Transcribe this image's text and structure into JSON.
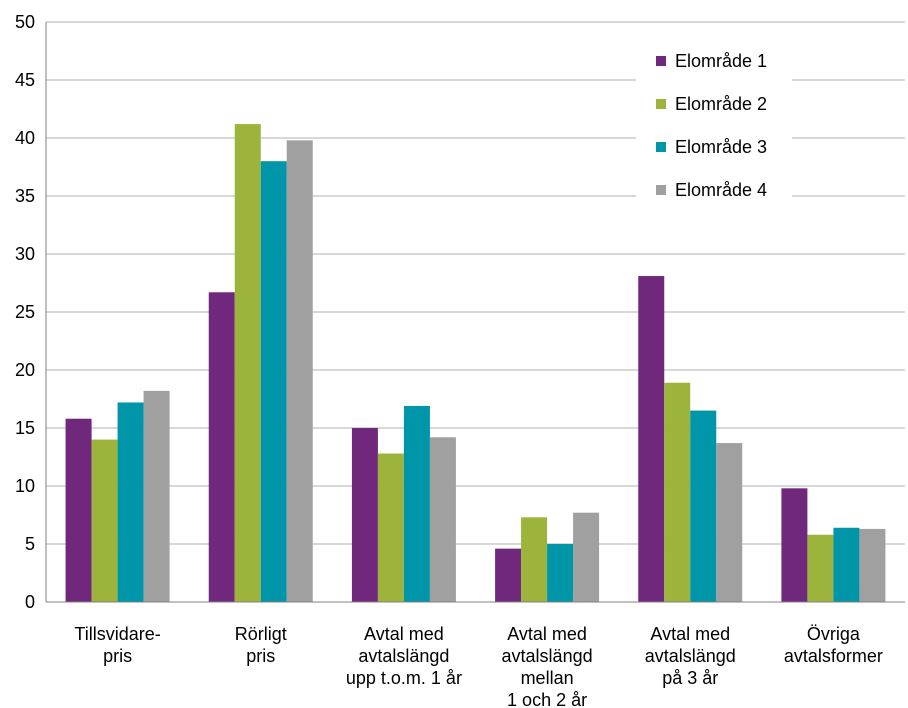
{
  "chart_data": {
    "type": "bar",
    "categories": [
      [
        "Tillsvidare-",
        "pris"
      ],
      [
        "Rörligt",
        "pris"
      ],
      [
        "Avtal med",
        "avtalslängd",
        "upp t.o.m. 1 år"
      ],
      [
        "Avtal med",
        "avtalslängd",
        "mellan",
        "1 och 2 år"
      ],
      [
        "Avtal med",
        "avtalslängd",
        "på 3 år"
      ],
      [
        "Övriga",
        "avtalsformer"
      ]
    ],
    "series": [
      {
        "name": "Elområde 1",
        "color": "#70287c",
        "values": [
          15.8,
          26.7,
          15.0,
          4.6,
          28.1,
          9.8
        ]
      },
      {
        "name": "Elområde 2",
        "color": "#9cb43c",
        "values": [
          14.0,
          41.2,
          12.8,
          7.3,
          18.9,
          5.8
        ]
      },
      {
        "name": "Elområde 3",
        "color": "#0096aa",
        "values": [
          17.2,
          38.0,
          16.9,
          5.0,
          16.5,
          6.4
        ]
      },
      {
        "name": "Elområde 4",
        "color": "#a0a0a0",
        "values": [
          18.2,
          39.8,
          14.2,
          7.7,
          13.7,
          6.3
        ]
      }
    ],
    "ylim": [
      0,
      50
    ],
    "yticks": [
      0,
      5,
      10,
      15,
      20,
      25,
      30,
      35,
      40,
      45,
      50
    ],
    "grid": true,
    "legend": "top-right"
  }
}
